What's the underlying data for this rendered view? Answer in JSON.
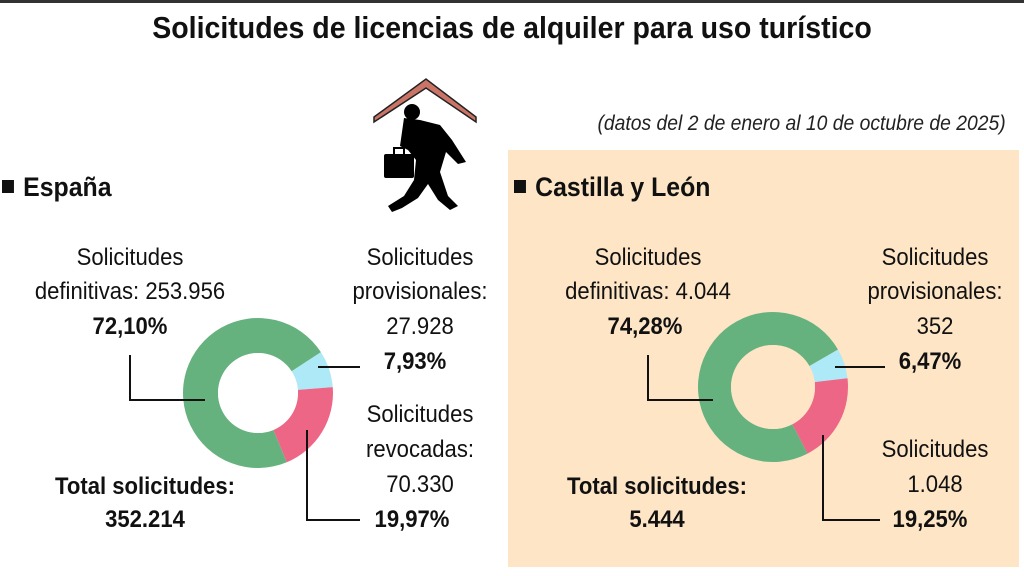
{
  "title": "Solicitudes de licencias de alquiler para uso turístico",
  "subtitle": "(datos del 2 de enero al 10 de octubre de 2025)",
  "icon": "traveler-with-suitcase-under-roof-icon",
  "colors": {
    "definitivas": "#66b27f",
    "provisionales": "#aee9f7",
    "revocadas": "#ee6685",
    "panel": "#fde5c6",
    "roof": "#c97466"
  },
  "chart_data": [
    {
      "type": "pie",
      "donut": true,
      "title": "España",
      "total_label": "Total solicitudes:",
      "total": "352.214",
      "slices": [
        {
          "key": "provisionales",
          "label_lines": [
            "Solicitudes",
            "provisionales:"
          ],
          "count": "27.928",
          "value": 7.93,
          "pct": "7,93%"
        },
        {
          "key": "revocadas",
          "label_lines": [
            "Solicitudes",
            "revocadas:"
          ],
          "count": "70.330",
          "value": 19.97,
          "pct": "19,97%"
        },
        {
          "key": "definitivas",
          "label_lines": [
            "Solicitudes",
            "definitivas: 253.956"
          ],
          "count": "253.956",
          "value": 72.1,
          "pct": "72,10%"
        }
      ]
    },
    {
      "type": "pie",
      "donut": true,
      "title": "Castilla y León",
      "total_label": "Total solicitudes:",
      "total": "5.444",
      "slices": [
        {
          "key": "provisionales",
          "label_lines": [
            "Solicitudes",
            "provisionales:"
          ],
          "count": "352",
          "value": 6.47,
          "pct": "6,47%"
        },
        {
          "key": "revocadas",
          "label_lines": [
            "Solicitudes"
          ],
          "count": "1.048",
          "value": 19.25,
          "pct": "19,25%"
        },
        {
          "key": "definitivas",
          "label_lines": [
            "Solicitudes",
            "definitivas: 4.044"
          ],
          "count": "4.044",
          "value": 74.28,
          "pct": "74,28%"
        }
      ]
    }
  ]
}
